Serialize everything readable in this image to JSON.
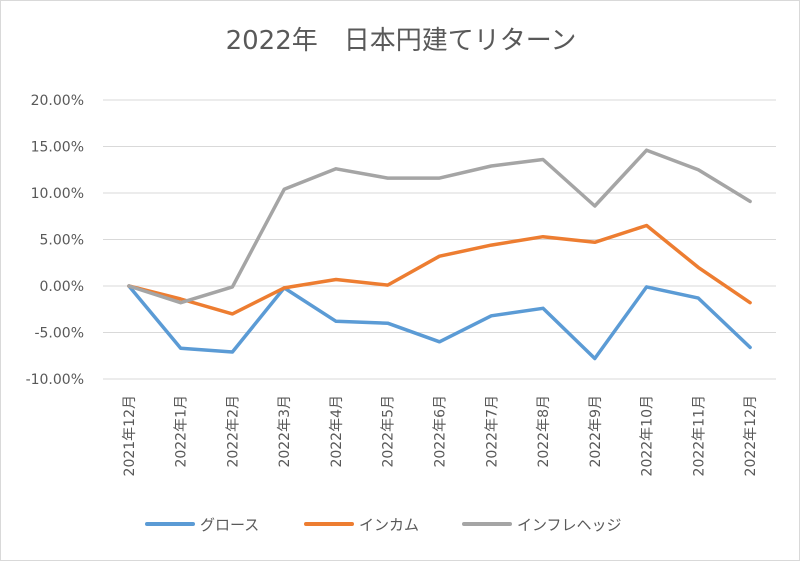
{
  "chart_data": {
    "type": "line",
    "title": "2022年　日本円建てリターン",
    "categories": [
      "2021年12月",
      "2022年1月",
      "2022年2月",
      "2022年3月",
      "2022年4月",
      "2022年5月",
      "2022年6月",
      "2022年7月",
      "2022年8月",
      "2022年9月",
      "2022年10月",
      "2022年11月",
      "2022年12月"
    ],
    "y_ticks": [
      "20.00%",
      "15.00%",
      "10.00%",
      "5.00%",
      "0.00%",
      "-5.00%",
      "-10.00%"
    ],
    "ylim": [
      -10,
      20
    ],
    "ystep": 5,
    "grid": true,
    "legend_position": "bottom",
    "series": [
      {
        "name": "グロース",
        "color": "#5b9bd5",
        "values": [
          0.0,
          -6.7,
          -7.1,
          -0.2,
          -3.8,
          -4.0,
          -6.0,
          -3.2,
          -2.4,
          -7.8,
          -0.1,
          -1.3,
          -6.6
        ]
      },
      {
        "name": "インカム",
        "color": "#ed7d31",
        "values": [
          0.0,
          -1.4,
          -3.0,
          -0.2,
          0.7,
          0.1,
          3.2,
          4.4,
          5.3,
          4.7,
          6.5,
          2.0,
          -1.8
        ]
      },
      {
        "name": "インフレヘッジ",
        "color": "#a5a5a5",
        "values": [
          0.0,
          -1.8,
          -0.1,
          10.4,
          12.6,
          11.6,
          11.6,
          12.9,
          13.6,
          8.6,
          14.6,
          12.5,
          9.1
        ]
      }
    ]
  }
}
